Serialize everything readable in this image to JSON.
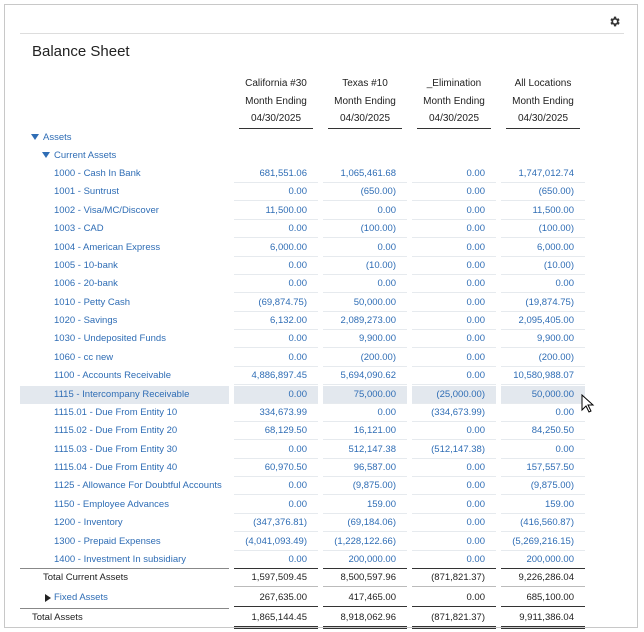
{
  "header": {
    "title": "Balance Sheet"
  },
  "columns": [
    {
      "name": "California #30",
      "period": "Month Ending",
      "date": "04/30/2025"
    },
    {
      "name": "Texas #10",
      "period": "Month Ending",
      "date": "04/30/2025"
    },
    {
      "name": "_Elimination",
      "period": "Month Ending",
      "date": "04/30/2025"
    },
    {
      "name": "All Locations",
      "period": "Month Ending",
      "date": "04/30/2025"
    }
  ],
  "assets": {
    "label": "Assets",
    "current_assets": {
      "label": "Current Assets",
      "rows": [
        {
          "label": "1000 - Cash In Bank",
          "values": [
            "681,551.06",
            "1,065,461.68",
            "0.00",
            "1,747,012.74"
          ]
        },
        {
          "label": "1001 - Suntrust",
          "values": [
            "0.00",
            "(650.00)",
            "0.00",
            "(650.00)"
          ]
        },
        {
          "label": "1002 - Visa/MC/Discover",
          "values": [
            "11,500.00",
            "0.00",
            "0.00",
            "11,500.00"
          ]
        },
        {
          "label": "1003 - CAD",
          "values": [
            "0.00",
            "(100.00)",
            "0.00",
            "(100.00)"
          ]
        },
        {
          "label": "1004 - American Express",
          "values": [
            "6,000.00",
            "0.00",
            "0.00",
            "6,000.00"
          ]
        },
        {
          "label": "1005 - 10-bank",
          "values": [
            "0.00",
            "(10.00)",
            "0.00",
            "(10.00)"
          ]
        },
        {
          "label": "1006 - 20-bank",
          "values": [
            "0.00",
            "0.00",
            "0.00",
            "0.00"
          ]
        },
        {
          "label": "1010 - Petty Cash",
          "values": [
            "(69,874.75)",
            "50,000.00",
            "0.00",
            "(19,874.75)"
          ]
        },
        {
          "label": "1020 - Savings",
          "values": [
            "6,132.00",
            "2,089,273.00",
            "0.00",
            "2,095,405.00"
          ]
        },
        {
          "label": "1030 - Undeposited Funds",
          "values": [
            "0.00",
            "9,900.00",
            "0.00",
            "9,900.00"
          ]
        },
        {
          "label": "1060 - cc new",
          "values": [
            "0.00",
            "(200.00)",
            "0.00",
            "(200.00)"
          ]
        },
        {
          "label": "1100 - Accounts Receivable",
          "values": [
            "4,886,897.45",
            "5,694,090.62",
            "0.00",
            "10,580,988.07"
          ]
        },
        {
          "label": "1115 - Intercompany Receivable",
          "values": [
            "0.00",
            "75,000.00",
            "(25,000.00)",
            "50,000.00"
          ]
        },
        {
          "label": "1115.01 - Due From Entity 10",
          "values": [
            "334,673.99",
            "0.00",
            "(334,673.99)",
            "0.00"
          ]
        },
        {
          "label": "1115.02 - Due From Entity 20",
          "values": [
            "68,129.50",
            "16,121.00",
            "0.00",
            "84,250.50"
          ]
        },
        {
          "label": "1115.03 - Due From Entity 30",
          "values": [
            "0.00",
            "512,147.38",
            "(512,147.38)",
            "0.00"
          ]
        },
        {
          "label": "1115.04 - Due From Entity 40",
          "values": [
            "60,970.50",
            "96,587.00",
            "0.00",
            "157,557.50"
          ]
        },
        {
          "label": "1125 - Allowance For Doubtful Accounts",
          "values": [
            "0.00",
            "(9,875.00)",
            "0.00",
            "(9,875.00)"
          ]
        },
        {
          "label": "1150 - Employee Advances",
          "values": [
            "0.00",
            "159.00",
            "0.00",
            "159.00"
          ]
        },
        {
          "label": "1200 - Inventory",
          "values": [
            "(347,376.81)",
            "(69,184.06)",
            "0.00",
            "(416,560.87)"
          ]
        },
        {
          "label": "1300 - Prepaid Expenses",
          "values": [
            "(4,041,093.49)",
            "(1,228,122.66)",
            "0.00",
            "(5,269,216.15)"
          ]
        },
        {
          "label": "1400 - Investment In subsidiary",
          "values": [
            "0.00",
            "200,000.00",
            "0.00",
            "200,000.00"
          ]
        }
      ],
      "total": {
        "label": "Total Current Assets",
        "values": [
          "1,597,509.45",
          "8,500,597.96",
          "(871,821.37)",
          "9,226,286.04"
        ]
      }
    },
    "fixed_assets": {
      "label": "Fixed Assets",
      "values": [
        "267,635.00",
        "417,465.00",
        "0.00",
        "685,100.00"
      ]
    },
    "total": {
      "label": "Total Assets",
      "values": [
        "1,865,144.45",
        "8,918,062.96",
        "(871,821.37)",
        "9,911,386.04"
      ]
    }
  }
}
